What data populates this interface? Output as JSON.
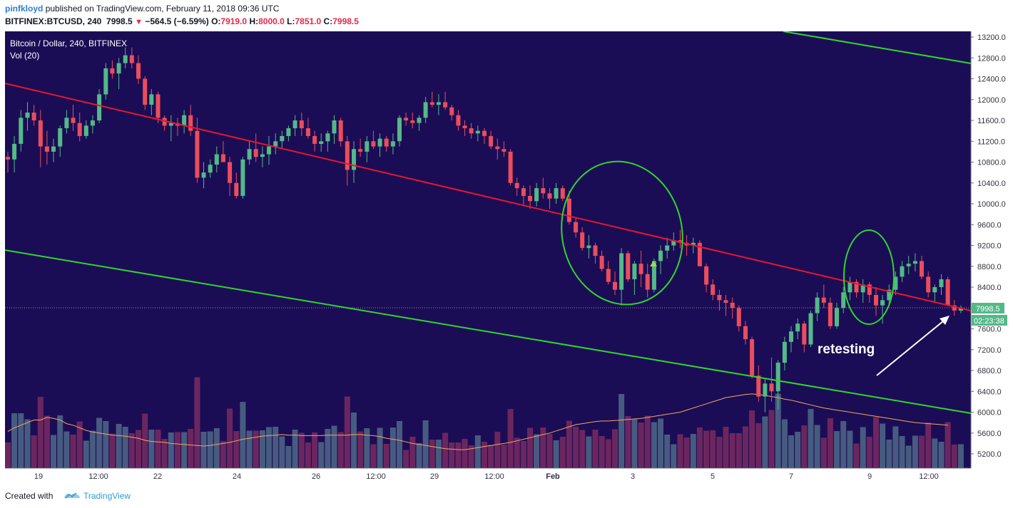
{
  "header": {
    "author": "pinfkloyd",
    "published_text": "published on TradingView.com, February 11, 2018 09:36 UTC",
    "symbol": "BITFINEX:BTCUSD, 240",
    "last": "7998.5",
    "change": "−564.5 (−6.59%)",
    "o_label": "O:",
    "o_value": "7919.0",
    "h_label": "H:",
    "h_value": "8000.0",
    "l_label": "L:",
    "l_value": "7851.0",
    "c_label": "C:",
    "c_value": "7998.5"
  },
  "legend": {
    "title": "Bitcoin / Dollar, 240, BITFINEX",
    "volume": "Vol (20)"
  },
  "footer": {
    "created_with": "Created with",
    "brand": "TradingView"
  },
  "annotation": "retesting",
  "price_badge": "7998.5",
  "countdown_badge": "02:23:38",
  "colors": {
    "background": "#1b0d55",
    "up": "#53b987",
    "down": "#eb4d5c",
    "trend_red": "#e8172b",
    "trend_green": "#2fd62f",
    "ellipse": "#2fd62f",
    "volume_ma": "#f5a461"
  },
  "chart_data": {
    "type": "candlestick",
    "y_axis": {
      "ticks": [
        "13200.0",
        "12800.0",
        "12400.0",
        "12000.0",
        "11600.0",
        "11200.0",
        "10800.0",
        "10400.0",
        "10000.0",
        "9600.0",
        "9200.0",
        "8800.0",
        "8400.0",
        "8000.0",
        "7600.0",
        "7200.0",
        "6800.0",
        "6400.0",
        "6000.0",
        "5600.0",
        "5200.0"
      ],
      "range": [
        4850,
        13300
      ]
    },
    "x_axis": {
      "ticks": [
        "19",
        "12:00",
        "22",
        "24",
        "26",
        "12:00",
        "29",
        "12:00",
        "Feb",
        "3",
        "5",
        "7",
        "9",
        "12:00"
      ]
    },
    "last_price": 7998.5,
    "candles_ohlc": [
      [
        10900,
        11000,
        10600,
        10850
      ],
      [
        10850,
        11300,
        10600,
        11150
      ],
      [
        11150,
        11800,
        11000,
        11650
      ],
      [
        11650,
        11950,
        11400,
        11750
      ],
      [
        11750,
        11900,
        11500,
        11600
      ],
      [
        11600,
        11800,
        10700,
        11100
      ],
      [
        11100,
        11400,
        10750,
        11000
      ],
      [
        11000,
        11250,
        10800,
        11100
      ],
      [
        11100,
        11500,
        10900,
        11450
      ],
      [
        11450,
        11800,
        11350,
        11650
      ],
      [
        11650,
        11900,
        11400,
        11550
      ],
      [
        11550,
        11750,
        11200,
        11300
      ],
      [
        11300,
        11600,
        11250,
        11500
      ],
      [
        11500,
        11700,
        11350,
        11600
      ],
      [
        11600,
        12200,
        11550,
        12100
      ],
      [
        12100,
        12700,
        12000,
        12600
      ],
      [
        12600,
        12750,
        12400,
        12500
      ],
      [
        12500,
        12800,
        12200,
        12700
      ],
      [
        12700,
        13000,
        12600,
        12850
      ],
      [
        12850,
        13000,
        12600,
        12700
      ],
      [
        12700,
        12850,
        12300,
        12400
      ],
      [
        12400,
        12450,
        11800,
        11900
      ],
      [
        11900,
        12200,
        11700,
        12100
      ],
      [
        12100,
        12150,
        11550,
        11650
      ],
      [
        11650,
        11700,
        11400,
        11500
      ],
      [
        11500,
        11700,
        11200,
        11550
      ],
      [
        11550,
        11650,
        11300,
        11500
      ],
      [
        11500,
        11800,
        11350,
        11700
      ],
      [
        11700,
        11900,
        11300,
        11400
      ],
      [
        11400,
        11650,
        10400,
        10500
      ],
      [
        10500,
        10800,
        10300,
        10600
      ],
      [
        10600,
        10850,
        10500,
        10750
      ],
      [
        10750,
        11100,
        10600,
        10950
      ],
      [
        10950,
        11200,
        10800,
        10800
      ],
      [
        10800,
        10900,
        10150,
        10400
      ],
      [
        10400,
        10600,
        10100,
        10150
      ],
      [
        10150,
        10900,
        10100,
        10850
      ],
      [
        10850,
        11200,
        10750,
        11050
      ],
      [
        11050,
        11350,
        10800,
        10900
      ],
      [
        10900,
        11100,
        10700,
        10950
      ],
      [
        10950,
        11300,
        10750,
        11100
      ],
      [
        11100,
        11350,
        10950,
        11200
      ],
      [
        11200,
        11400,
        11050,
        11300
      ],
      [
        11300,
        11500,
        11200,
        11450
      ],
      [
        11450,
        11700,
        11300,
        11600
      ],
      [
        11600,
        11750,
        11300,
        11450
      ],
      [
        11450,
        11650,
        11250,
        11300
      ],
      [
        11300,
        11400,
        11000,
        11150
      ],
      [
        11150,
        11350,
        11000,
        11200
      ],
      [
        11200,
        11400,
        11000,
        11350
      ],
      [
        11350,
        11700,
        11150,
        11600
      ],
      [
        11600,
        11650,
        11100,
        11200
      ],
      [
        11200,
        11300,
        10350,
        10650
      ],
      [
        10650,
        11200,
        10400,
        11050
      ],
      [
        11050,
        11250,
        10900,
        11000
      ],
      [
        11000,
        11300,
        10800,
        11200
      ],
      [
        11200,
        11400,
        11050,
        11100
      ],
      [
        11100,
        11350,
        10900,
        11250
      ],
      [
        11250,
        11300,
        11000,
        11100
      ],
      [
        11100,
        11350,
        10950,
        11200
      ],
      [
        11200,
        11700,
        11100,
        11650
      ],
      [
        11650,
        11750,
        11500,
        11600
      ],
      [
        11600,
        11750,
        11450,
        11550
      ],
      [
        11550,
        11700,
        11400,
        11650
      ],
      [
        11650,
        12050,
        11550,
        11950
      ],
      [
        11950,
        12150,
        11850,
        11900
      ],
      [
        11900,
        12100,
        11700,
        11950
      ],
      [
        11950,
        12150,
        11800,
        11850
      ],
      [
        11850,
        11900,
        11600,
        11700
      ],
      [
        11700,
        11800,
        11400,
        11500
      ],
      [
        11500,
        11600,
        11300,
        11450
      ],
      [
        11450,
        11550,
        11250,
        11350
      ],
      [
        11350,
        11500,
        11200,
        11400
      ],
      [
        11400,
        11450,
        11150,
        11300
      ],
      [
        11300,
        11400,
        11050,
        11100
      ],
      [
        11100,
        11250,
        10850,
        11050
      ],
      [
        11050,
        11200,
        10900,
        11000
      ],
      [
        11000,
        11050,
        10350,
        10400
      ],
      [
        10400,
        10500,
        10150,
        10300
      ],
      [
        10300,
        10350,
        9950,
        10150
      ],
      [
        10150,
        10350,
        9900,
        10050
      ],
      [
        10050,
        10400,
        9950,
        10300
      ],
      [
        10300,
        10500,
        10100,
        10200
      ],
      [
        10200,
        10300,
        9900,
        10100
      ],
      [
        10100,
        10400,
        10000,
        10300
      ],
      [
        10300,
        10350,
        10050,
        10100
      ],
      [
        10100,
        10250,
        9600,
        9650
      ],
      [
        9650,
        9750,
        9350,
        9450
      ],
      [
        9450,
        9550,
        9100,
        9150
      ],
      [
        9150,
        9400,
        8950,
        9200
      ],
      [
        9200,
        9250,
        8850,
        9000
      ],
      [
        9000,
        9100,
        8700,
        8750
      ],
      [
        8750,
        8900,
        8450,
        8500
      ],
      [
        8500,
        8700,
        8250,
        8350
      ],
      [
        8350,
        9150,
        8050,
        9050
      ],
      [
        9050,
        9100,
        8500,
        8550
      ],
      [
        8550,
        8900,
        8250,
        8850
      ],
      [
        8850,
        9100,
        8400,
        8650
      ],
      [
        8650,
        8850,
        8200,
        8350
      ],
      [
        8350,
        8950,
        8300,
        8900
      ],
      [
        8900,
        9200,
        8650,
        9100
      ],
      [
        9100,
        9350,
        8950,
        9200
      ],
      [
        9200,
        9450,
        9100,
        9300
      ],
      [
        9300,
        9500,
        9150,
        9250
      ],
      [
        9250,
        9400,
        9000,
        9200
      ],
      [
        9200,
        9350,
        9050,
        9250
      ],
      [
        9250,
        9300,
        8800,
        8800
      ],
      [
        8800,
        8850,
        8300,
        8450
      ],
      [
        8450,
        8550,
        8150,
        8250
      ],
      [
        8250,
        8350,
        7950,
        8150
      ],
      [
        8150,
        8250,
        7850,
        8100
      ],
      [
        8100,
        8200,
        7800,
        8000
      ],
      [
        8000,
        8050,
        7550,
        7650
      ],
      [
        7650,
        7750,
        7300,
        7400
      ],
      [
        7400,
        7450,
        6650,
        6700
      ],
      [
        6700,
        6900,
        6200,
        6300
      ],
      [
        6300,
        6650,
        6000,
        6550
      ],
      [
        6550,
        7050,
        6200,
        6400
      ],
      [
        6400,
        7000,
        6050,
        6950
      ],
      [
        6950,
        7450,
        6800,
        7350
      ],
      [
        7350,
        7650,
        7150,
        7550
      ],
      [
        7550,
        7800,
        7400,
        7700
      ],
      [
        7700,
        7750,
        7150,
        7300
      ],
      [
        7300,
        7950,
        7250,
        7900
      ],
      [
        7900,
        8300,
        7750,
        8200
      ],
      [
        8200,
        8450,
        8000,
        8100
      ],
      [
        8100,
        8200,
        7600,
        7650
      ],
      [
        7650,
        8100,
        7600,
        8000
      ],
      [
        8000,
        8400,
        7900,
        8300
      ],
      [
        8300,
        8600,
        8150,
        8500
      ],
      [
        8500,
        8550,
        8200,
        8300
      ],
      [
        8300,
        8550,
        8100,
        8450
      ],
      [
        8450,
        8500,
        8100,
        8250
      ],
      [
        8250,
        8400,
        7850,
        8050
      ],
      [
        8050,
        8250,
        7700,
        8150
      ],
      [
        8150,
        8450,
        8050,
        8350
      ],
      [
        8350,
        8700,
        8250,
        8600
      ],
      [
        8600,
        8900,
        8500,
        8800
      ],
      [
        8800,
        9000,
        8650,
        8850
      ],
      [
        8850,
        9050,
        8700,
        8900
      ],
      [
        8900,
        9000,
        8550,
        8600
      ],
      [
        8600,
        8700,
        8200,
        8300
      ],
      [
        8300,
        8450,
        8100,
        8400
      ],
      [
        8400,
        8650,
        8250,
        8550
      ],
      [
        8550,
        8600,
        8050,
        8050
      ],
      [
        8050,
        8150,
        7850,
        7950
      ],
      [
        7950,
        8050,
        7900,
        8000
      ]
    ],
    "volume_ma": [
      5630,
      5700,
      5750,
      5800,
      5850,
      5850,
      5900,
      5880,
      5850,
      5780,
      5750,
      5700,
      5650,
      5620,
      5600,
      5580,
      5560,
      5550,
      5540,
      5520,
      5500,
      5460,
      5440,
      5430,
      5420,
      5400,
      5390,
      5380,
      5370,
      5360,
      5350,
      5360,
      5380,
      5400,
      5420,
      5450,
      5480,
      5500,
      5520,
      5540,
      5550,
      5560,
      5570,
      5560,
      5560,
      5550,
      5550,
      5550,
      5550,
      5560,
      5560,
      5560,
      5560,
      5570,
      5570,
      5560,
      5550,
      5530,
      5500,
      5480,
      5460,
      5430,
      5400,
      5380,
      5360,
      5340,
      5320,
      5300,
      5290,
      5280,
      5280,
      5300,
      5320,
      5340,
      5360,
      5380,
      5400,
      5420,
      5450,
      5480,
      5510,
      5540,
      5570,
      5600,
      5640,
      5680,
      5720,
      5760,
      5780,
      5800,
      5820,
      5830,
      5830,
      5840,
      5850,
      5860,
      5870,
      5880,
      5900,
      5920,
      5940,
      5960,
      5980,
      6000,
      6040,
      6080,
      6120,
      6160,
      6200,
      6240,
      6280,
      6300,
      6320,
      6340,
      6350,
      6340,
      6320,
      6300,
      6280,
      6250,
      6230,
      6200,
      6170,
      6140,
      6110,
      6080,
      6060,
      6040,
      6020,
      6000,
      5980,
      5960,
      5940,
      5920,
      5900,
      5880,
      5860,
      5840,
      5820,
      5800,
      5790,
      5780,
      5770,
      5760,
      5750
    ]
  }
}
